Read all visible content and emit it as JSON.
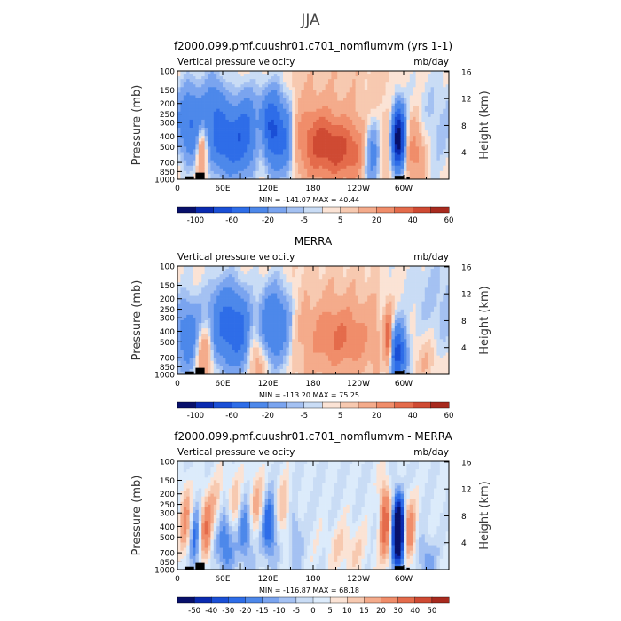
{
  "figure_title": "JJA",
  "chart_data": [
    {
      "type": "heatmap",
      "title": "f2000.099.pmf.cuushr01.c701_nomflumvm (yrs 1-1)",
      "left_string": "Vertical pressure velocity",
      "right_string": "mb/day",
      "ylabel": "Pressure (mb)",
      "ylabel_right": "Height (km)",
      "x_ticks": [
        "0",
        "60E",
        "120E",
        "180",
        "120W",
        "60W"
      ],
      "x_tick_lon": [
        0,
        60,
        120,
        180,
        240,
        300
      ],
      "xlim": [
        0,
        360
      ],
      "p_ticks": [
        "100",
        "150",
        "200",
        "250",
        "300",
        "400",
        "500",
        "700",
        "850",
        "1000"
      ],
      "p_tick_values": [
        100,
        150,
        200,
        250,
        300,
        400,
        500,
        700,
        850,
        1000
      ],
      "height_ticks": [
        "16",
        "12",
        "8",
        "4"
      ],
      "height_tick_values": [
        16,
        12,
        8,
        4
      ],
      "ylim": [
        1000,
        100
      ],
      "minmax_label": "MIN = -141.07   MAX =   40.44",
      "min": -141.07,
      "max": 40.44,
      "colorbar_labels": [
        "-100",
        "-60",
        "-20",
        "-5",
        "5",
        "20",
        "40",
        "60"
      ],
      "colorbar_levels": [
        -120,
        -100,
        -80,
        -60,
        -40,
        -20,
        -10,
        -5,
        0,
        5,
        10,
        20,
        30,
        40,
        50,
        60
      ],
      "features": [
        {
          "lon": 18,
          "p": 300,
          "wlon": 14,
          "wp": 0.55,
          "amp": -45
        },
        {
          "lon": 32,
          "p": 500,
          "wlon": 5,
          "wp": 0.4,
          "amp": 35
        },
        {
          "lon": 50,
          "p": 220,
          "wlon": 10,
          "wp": 0.55,
          "amp": -30
        },
        {
          "lon": 68,
          "p": 450,
          "wlon": 16,
          "wp": 0.5,
          "amp": -55
        },
        {
          "lon": 90,
          "p": 350,
          "wlon": 10,
          "wp": 0.6,
          "amp": -35
        },
        {
          "lon": 112,
          "p": 450,
          "wlon": 6,
          "wp": 0.4,
          "amp": 25
        },
        {
          "lon": 125,
          "p": 350,
          "wlon": 13,
          "wp": 0.55,
          "amp": -70
        },
        {
          "lon": 145,
          "p": 500,
          "wlon": 8,
          "wp": 0.5,
          "amp": -25
        },
        {
          "lon": 215,
          "p": 550,
          "wlon": 32,
          "wp": 0.45,
          "amp": 32
        },
        {
          "lon": 185,
          "p": 380,
          "wlon": 22,
          "wp": 0.5,
          "amp": 18
        },
        {
          "lon": 258,
          "p": 600,
          "wlon": 8,
          "wp": 0.5,
          "amp": -45
        },
        {
          "lon": 293,
          "p": 420,
          "wlon": 6,
          "wp": 0.45,
          "amp": -120
        },
        {
          "lon": 315,
          "p": 550,
          "wlon": 10,
          "wp": 0.5,
          "amp": 25
        },
        {
          "lon": 345,
          "p": 300,
          "wlon": 25,
          "wp": 0.8,
          "amp": -10
        }
      ]
    },
    {
      "type": "heatmap",
      "title": "MERRA",
      "left_string": "Vertical pressure velocity",
      "right_string": "mb/day",
      "ylabel": "Pressure (mb)",
      "ylabel_right": "Height (km)",
      "x_ticks": [
        "0",
        "60E",
        "120E",
        "180",
        "120W",
        "60W"
      ],
      "x_tick_lon": [
        0,
        60,
        120,
        180,
        240,
        300
      ],
      "xlim": [
        0,
        360
      ],
      "p_ticks": [
        "100",
        "150",
        "200",
        "250",
        "300",
        "400",
        "500",
        "700",
        "850",
        "1000"
      ],
      "p_tick_values": [
        100,
        150,
        200,
        250,
        300,
        400,
        500,
        700,
        850,
        1000
      ],
      "height_ticks": [
        "16",
        "12",
        "8",
        "4"
      ],
      "height_tick_values": [
        16,
        12,
        8,
        4
      ],
      "ylim": [
        1000,
        100
      ],
      "minmax_label": "MIN = -113.20   MAX =   75.25",
      "min": -113.2,
      "max": 75.25,
      "colorbar_labels": [
        "-100",
        "-60",
        "-20",
        "-5",
        "5",
        "20",
        "40",
        "60"
      ],
      "colorbar_levels": [
        -120,
        -100,
        -80,
        -60,
        -40,
        -20,
        -10,
        -5,
        0,
        5,
        10,
        20,
        30,
        40,
        50,
        60
      ],
      "features": [
        {
          "lon": 15,
          "p": 450,
          "wlon": 14,
          "wp": 0.55,
          "amp": -35
        },
        {
          "lon": 35,
          "p": 600,
          "wlon": 9,
          "wp": 0.45,
          "amp": 30
        },
        {
          "lon": 65,
          "p": 350,
          "wlon": 16,
          "wp": 0.6,
          "amp": -50
        },
        {
          "lon": 85,
          "p": 450,
          "wlon": 9,
          "wp": 0.55,
          "amp": -28
        },
        {
          "lon": 128,
          "p": 350,
          "wlon": 14,
          "wp": 0.55,
          "amp": -45
        },
        {
          "lon": 105,
          "p": 700,
          "wlon": 10,
          "wp": 0.45,
          "amp": 18
        },
        {
          "lon": 215,
          "p": 450,
          "wlon": 30,
          "wp": 0.5,
          "amp": 25
        },
        {
          "lon": 280,
          "p": 500,
          "wlon": 4,
          "wp": 0.45,
          "amp": 45
        },
        {
          "lon": 292,
          "p": 650,
          "wlon": 8,
          "wp": 0.4,
          "amp": -70
        },
        {
          "lon": 350,
          "p": 250,
          "wlon": 30,
          "wp": 0.9,
          "amp": -10
        },
        {
          "lon": 330,
          "p": 700,
          "wlon": 14,
          "wp": 0.45,
          "amp": 10
        }
      ]
    },
    {
      "type": "heatmap",
      "title": "f2000.099.pmf.cuushr01.c701_nomflumvm - MERRA",
      "left_string": "Vertical pressure velocity",
      "right_string": "mb/day",
      "ylabel": "Pressure (mb)",
      "ylabel_right": "Height (km)",
      "x_ticks": [
        "0",
        "60E",
        "120E",
        "180",
        "120W",
        "60W"
      ],
      "x_tick_lon": [
        0,
        60,
        120,
        180,
        240,
        300
      ],
      "xlim": [
        0,
        360
      ],
      "p_ticks": [
        "100",
        "150",
        "200",
        "250",
        "300",
        "400",
        "500",
        "700",
        "850",
        "1000"
      ],
      "p_tick_values": [
        100,
        150,
        200,
        250,
        300,
        400,
        500,
        700,
        850,
        1000
      ],
      "height_ticks": [
        "16",
        "12",
        "8",
        "4"
      ],
      "height_tick_values": [
        16,
        12,
        8,
        4
      ],
      "ylim": [
        1000,
        100
      ],
      "minmax_label": "MIN = -116.87   MAX =   68.18",
      "min": -116.87,
      "max": 68.18,
      "colorbar_labels": [
        "-50",
        "-40",
        "-30",
        "-20",
        "-15",
        "-10",
        "-5",
        "0",
        "5",
        "10",
        "15",
        "20",
        "30",
        "40",
        "50"
      ],
      "colorbar_levels": [
        -60,
        -50,
        -40,
        -30,
        -20,
        -15,
        -10,
        -5,
        0,
        5,
        10,
        15,
        20,
        30,
        40,
        50,
        60
      ],
      "features": [
        {
          "lon": 12,
          "p": 350,
          "wlon": 7,
          "wp": 0.55,
          "amp": 22
        },
        {
          "lon": 22,
          "p": 500,
          "wlon": 5,
          "wp": 0.55,
          "amp": -25
        },
        {
          "lon": 38,
          "p": 420,
          "wlon": 5,
          "wp": 0.5,
          "amp": 25
        },
        {
          "lon": 52,
          "p": 300,
          "wlon": 8,
          "wp": 0.5,
          "amp": 18
        },
        {
          "lon": 62,
          "p": 500,
          "wlon": 9,
          "wp": 0.55,
          "amp": -28
        },
        {
          "lon": 75,
          "p": 250,
          "wlon": 8,
          "wp": 0.5,
          "amp": 15
        },
        {
          "lon": 90,
          "p": 450,
          "wlon": 7,
          "wp": 0.55,
          "amp": -22
        },
        {
          "lon": 105,
          "p": 250,
          "wlon": 8,
          "wp": 0.5,
          "amp": 18
        },
        {
          "lon": 122,
          "p": 400,
          "wlon": 8,
          "wp": 0.5,
          "amp": -30
        },
        {
          "lon": 140,
          "p": 300,
          "wlon": 8,
          "wp": 0.5,
          "amp": 15
        },
        {
          "lon": 155,
          "p": 500,
          "wlon": 6,
          "wp": 0.45,
          "amp": -15
        },
        {
          "lon": 225,
          "p": 650,
          "wlon": 20,
          "wp": 0.4,
          "amp": 10
        },
        {
          "lon": 275,
          "p": 350,
          "wlon": 5,
          "wp": 0.6,
          "amp": 35
        },
        {
          "lon": 293,
          "p": 450,
          "wlon": 5,
          "wp": 0.5,
          "amp": -90
        },
        {
          "lon": 308,
          "p": 450,
          "wlon": 6,
          "wp": 0.5,
          "amp": 25
        },
        {
          "lon": 330,
          "p": 800,
          "wlon": 8,
          "wp": 0.35,
          "amp": -15
        }
      ]
    }
  ]
}
